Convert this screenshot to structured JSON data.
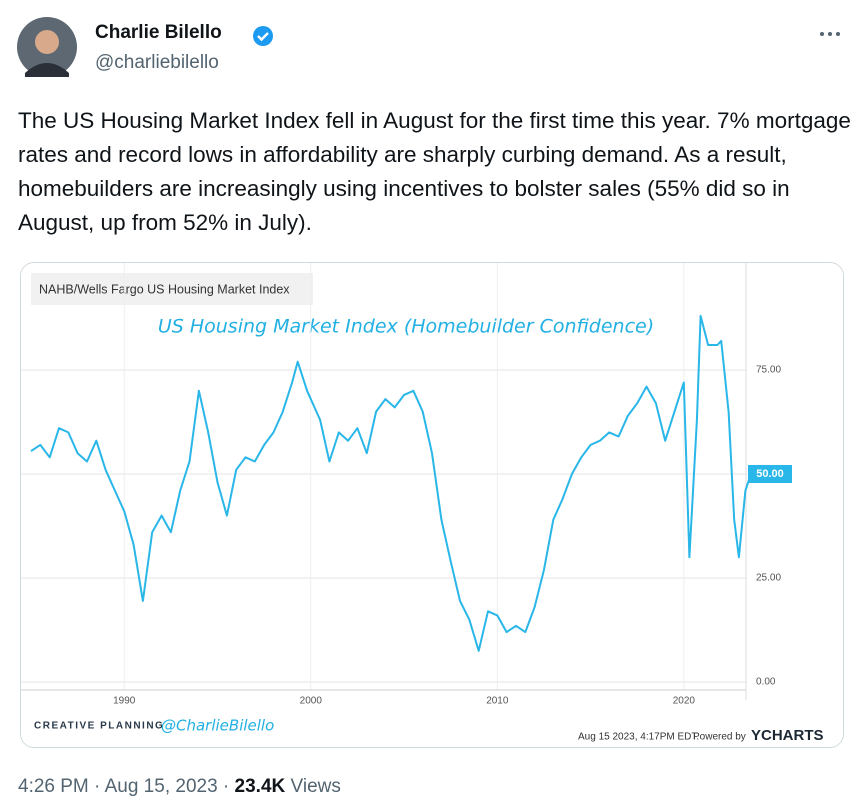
{
  "tweet": {
    "name": "Charlie Bilello",
    "handle": "@charliebilello",
    "text": "The US Housing Market Index fell in August for the first time this year. 7% mortgage rates and record lows in affordability are sharply curbing demand. As a result, homebuilders are increasingly using incentives to bolster sales (55% did so in August, up from 52% in July).",
    "time": "4:26 PM · Aug 15, 2023 · ",
    "views_count": "23.4K",
    "views_label": "Views"
  },
  "chart_data": {
    "type": "line",
    "source": "NAHB/Wells Fargo US Housing Market Index",
    "title": "US Housing Market Index (Homebuilder Confidence)",
    "x": [
      1985.0,
      1985.5,
      1986.0,
      1986.5,
      1987.0,
      1987.5,
      1988.0,
      1988.5,
      1989.0,
      1989.5,
      1990.0,
      1990.5,
      1991.0,
      1991.5,
      1992.0,
      1992.5,
      1993.0,
      1993.5,
      1994.0,
      1994.5,
      1995.0,
      1995.5,
      1996.0,
      1996.5,
      1997.0,
      1997.5,
      1998.0,
      1998.5,
      1999.0,
      1999.3,
      1999.8,
      2000.5,
      2001.0,
      2001.5,
      2002.0,
      2002.5,
      2003.0,
      2003.5,
      2004.0,
      2004.5,
      2005.0,
      2005.5,
      2006.0,
      2006.5,
      2007.0,
      2007.5,
      2008.0,
      2008.5,
      2009.0,
      2009.5,
      2010.0,
      2010.5,
      2011.0,
      2011.5,
      2012.0,
      2012.5,
      2013.0,
      2013.5,
      2014.0,
      2014.5,
      2015.0,
      2015.5,
      2016.0,
      2016.5,
      2017.0,
      2017.5,
      2018.0,
      2018.5,
      2019.0,
      2019.5,
      2020.0,
      2020.3,
      2020.7,
      2020.9,
      2021.3,
      2021.8,
      2022.0,
      2022.4,
      2022.7,
      2022.95,
      2023.3,
      2023.6
    ],
    "values": [
      55.5,
      57,
      54,
      61,
      60,
      55,
      53,
      58,
      51,
      46,
      41,
      33,
      19.5,
      36,
      40,
      36,
      46,
      53,
      70,
      60,
      48,
      40,
      51,
      54,
      53,
      57,
      60,
      65,
      72,
      77,
      70,
      63,
      53,
      60,
      58,
      61,
      55,
      65,
      68,
      66,
      69,
      70,
      65,
      55,
      39,
      29,
      19.5,
      15,
      7.5,
      17,
      16,
      12,
      13.5,
      12,
      18,
      27,
      39,
      44,
      50,
      54,
      57,
      58,
      60,
      59,
      64,
      67,
      71,
      67,
      58,
      65,
      72,
      30,
      63,
      88,
      81,
      81,
      82,
      65,
      39,
      30,
      46,
      50
    ],
    "color": "#29b6e8",
    "last_label": {
      "value": 50,
      "label": "50.00"
    },
    "xlim": [
      1985,
      2023.6
    ],
    "xticks": [
      1990,
      2000,
      2010,
      2020
    ],
    "ylim": [
      -2,
      98
    ],
    "yticks": [
      {
        "value": 0,
        "label": "0.00"
      },
      {
        "value": 25,
        "label": "25.00"
      },
      {
        "value": 50,
        "label": "50.00"
      },
      {
        "value": 75,
        "label": "75.00"
      }
    ],
    "grid": true,
    "brand": "CREATIVE PLANNING",
    "watermark": "@CharlieBilello",
    "timestamp": "Aug 15 2023, 4:17PM EDT.",
    "powered_by": "Powered by",
    "logo": "YCHARTS"
  }
}
